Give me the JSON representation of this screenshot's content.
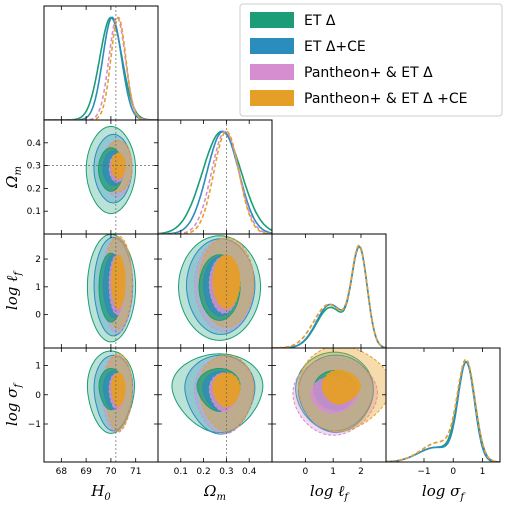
{
  "chart_data": {
    "type": "corner",
    "params": [
      {
        "key": "H0",
        "label_main": "H",
        "label_sub": "0",
        "range": [
          67.3,
          71.9
        ],
        "ticks": [
          68,
          69,
          70,
          71
        ],
        "truth": 70.2
      },
      {
        "key": "Om",
        "label_main": "Ω",
        "label_sub": "m",
        "range": [
          0.0,
          0.5
        ],
        "ticks": [
          0.1,
          0.2,
          0.3,
          0.4
        ],
        "truth": 0.3
      },
      {
        "key": "logl",
        "label_main": "log ℓ",
        "label_sub": "f",
        "range": [
          -1.2,
          2.9
        ],
        "ticks": [
          0,
          1,
          2
        ],
        "truth": null
      },
      {
        "key": "logs",
        "label_main": "log σ",
        "label_sub": "f",
        "range": [
          -2.3,
          1.6
        ],
        "ticks": [
          -1,
          0,
          1
        ],
        "truth": null
      }
    ],
    "tick_labels": {
      "H0": [
        "68",
        "69",
        "70",
        "71"
      ],
      "Om": [
        "0.1",
        "0.2",
        "0.3",
        "0.4"
      ],
      "logl": [
        "0",
        "1",
        "2"
      ],
      "logs": [
        "−1",
        "0",
        "1"
      ]
    },
    "legend": {
      "placement": "top-right",
      "entries": [
        {
          "name": "ET Δ",
          "color": "#1b9e77"
        },
        {
          "name": "ET Δ+CE",
          "color": "#2b8cbe"
        },
        {
          "name": "Pantheon+ & ET Δ",
          "color": "#d68ed0"
        },
        {
          "name": "Pantheon+ & ET Δ +CE",
          "color": "#e69f26"
        }
      ]
    },
    "series": [
      {
        "color": "#1b9e77",
        "dashed": false,
        "fill_opacity": 0.4,
        "marg": {
          "H0": {
            "mu": 70.0,
            "sd": 0.45
          },
          "Om": {
            "mu": 0.28,
            "sd": 0.085
          },
          "logl": {
            "peaks": [
              {
                "mu": 1.95,
                "sd": 0.28,
                "w": 1.0
              },
              {
                "mu": 0.9,
                "sd": 0.5,
                "w": 0.42
              }
            ]
          },
          "logs": {
            "peaks": [
              {
                "mu": 0.45,
                "sd": 0.3,
                "w": 1.0
              },
              {
                "mu": -0.6,
                "sd": 0.6,
                "w": 0.15
              }
            ]
          }
        },
        "contours": {
          "H0|Om": {
            "c": [
              70.0,
              0.285
            ],
            "r1": [
              0.48,
              0.085
            ],
            "r2": [
              0.95,
              0.17
            ],
            "skew": [
              0.05,
              0.05,
              0.15,
              0.1
            ]
          },
          "H0|logl": {
            "c": [
              70.0,
              1.0
            ],
            "r1": [
              0.48,
              1.15
            ],
            "r2": [
              0.95,
              1.8
            ],
            "skew": [
              0.05,
              0.0,
              0.1,
              0.05
            ]
          },
          "H0|logs": {
            "c": [
              70.0,
              0.3
            ],
            "r1": [
              0.48,
              0.6
            ],
            "r2": [
              0.95,
              1.2
            ],
            "skew": [
              0.0,
              0.0,
              0.35,
              0.0
            ]
          },
          "Om|logl": {
            "c": [
              0.27,
              1.0
            ],
            "r1": [
              0.09,
              1.1
            ],
            "r2": [
              0.18,
              1.75
            ],
            "skew": [
              0.0,
              0.0,
              0.1,
              0.05
            ]
          },
          "Om|logs": {
            "c": [
              0.27,
              0.3
            ],
            "r1": [
              0.09,
              0.6
            ],
            "r2": [
              0.19,
              1.1
            ],
            "skew": [
              0.0,
              0.1,
              0.45,
              0.0
            ]
          },
          "logl|logs": {
            "c": [
              1.05,
              0.2
            ],
            "r1": [
              0.75,
              0.6
            ],
            "r2": [
              1.4,
              1.2
            ],
            "skew": [
              0.0,
              0.0,
              0.2,
              0.05
            ]
          }
        }
      },
      {
        "color": "#2b8cbe",
        "dashed": false,
        "fill_opacity": 0.4,
        "marg": {
          "H0": {
            "mu": 70.05,
            "sd": 0.38
          },
          "Om": {
            "mu": 0.285,
            "sd": 0.07
          },
          "logl": {
            "peaks": [
              {
                "mu": 1.95,
                "sd": 0.28,
                "w": 1.0
              },
              {
                "mu": 0.9,
                "sd": 0.5,
                "w": 0.45
              }
            ]
          },
          "logs": {
            "peaks": [
              {
                "mu": 0.45,
                "sd": 0.28,
                "w": 1.0
              },
              {
                "mu": -0.6,
                "sd": 0.6,
                "w": 0.15
              }
            ]
          }
        },
        "contours": {
          "H0|Om": {
            "c": [
              70.1,
              0.29
            ],
            "r1": [
              0.4,
              0.07
            ],
            "r2": [
              0.75,
              0.14
            ],
            "skew": [
              0.0,
              0.05,
              0.1,
              0.05
            ]
          },
          "H0|logl": {
            "c": [
              70.1,
              1.05
            ],
            "r1": [
              0.4,
              1.05
            ],
            "r2": [
              0.78,
              1.65
            ],
            "skew": [
              0.0,
              0.0,
              0.1,
              0.05
            ]
          },
          "H0|logs": {
            "c": [
              70.1,
              0.25
            ],
            "r1": [
              0.4,
              0.55
            ],
            "r2": [
              0.78,
              1.1
            ],
            "skew": [
              0.0,
              0.0,
              0.35,
              0.0
            ]
          },
          "Om|logl": {
            "c": [
              0.275,
              1.05
            ],
            "r1": [
              0.075,
              1.0
            ],
            "r2": [
              0.15,
              1.6
            ],
            "skew": [
              0.0,
              0.0,
              0.1,
              0.05
            ]
          },
          "Om|logs": {
            "c": [
              0.275,
              0.25
            ],
            "r1": [
              0.075,
              0.55
            ],
            "r2": [
              0.15,
              1.1
            ],
            "skew": [
              0.0,
              0.05,
              0.45,
              0.0
            ]
          },
          "logl|logs": {
            "c": [
              1.1,
              0.15
            ],
            "r1": [
              0.7,
              0.55
            ],
            "r2": [
              1.35,
              1.15
            ],
            "skew": [
              0.0,
              0.0,
              0.25,
              0.05
            ]
          }
        }
      },
      {
        "color": "#d68ed0",
        "dashed": true,
        "fill_opacity": 0.45,
        "marg": {
          "H0": {
            "mu": 70.25,
            "sd": 0.33
          },
          "Om": {
            "mu": 0.295,
            "sd": 0.06
          },
          "logl": {
            "peaks": [
              {
                "mu": 1.95,
                "sd": 0.28,
                "w": 1.0
              },
              {
                "mu": 0.85,
                "sd": 0.55,
                "w": 0.45
              }
            ]
          },
          "logs": {
            "peaks": [
              {
                "mu": 0.45,
                "sd": 0.3,
                "w": 1.0
              },
              {
                "mu": -0.5,
                "sd": 0.6,
                "w": 0.2
              }
            ]
          }
        },
        "contours": {
          "H0|Om": {
            "c": [
              70.25,
              0.29
            ],
            "r1": [
              0.32,
              0.06
            ],
            "r2": [
              0.6,
              0.12
            ],
            "skew": [
              0.0,
              0.0,
              0.05,
              0.0
            ]
          },
          "H0|logl": {
            "c": [
              70.25,
              1.1
            ],
            "r1": [
              0.32,
              1.0
            ],
            "r2": [
              0.62,
              1.6
            ],
            "skew": [
              0.0,
              0.0,
              0.1,
              0.05
            ]
          },
          "H0|logs": {
            "c": [
              70.25,
              0.2
            ],
            "r1": [
              0.32,
              0.55
            ],
            "r2": [
              0.62,
              1.15
            ],
            "skew": [
              0.0,
              0.0,
              0.3,
              0.0
            ]
          },
          "Om|logl": {
            "c": [
              0.29,
              1.1
            ],
            "r1": [
              0.065,
              0.95
            ],
            "r2": [
              0.13,
              1.55
            ],
            "skew": [
              0.0,
              0.0,
              0.1,
              0.05
            ]
          },
          "Om|logs": {
            "c": [
              0.29,
              0.2
            ],
            "r1": [
              0.065,
              0.55
            ],
            "r2": [
              0.13,
              1.1
            ],
            "skew": [
              0.0,
              0.0,
              0.4,
              0.0
            ]
          },
          "logl|logs": {
            "c": [
              1.0,
              0.05
            ],
            "r1": [
              0.8,
              0.55
            ],
            "r2": [
              1.45,
              1.15
            ],
            "skew": [
              0.1,
              0.0,
              0.25,
              0.05
            ]
          }
        }
      },
      {
        "color": "#e69f26",
        "dashed": true,
        "fill_opacity": 0.5,
        "marg": {
          "H0": {
            "mu": 70.3,
            "sd": 0.3
          },
          "Om": {
            "mu": 0.3,
            "sd": 0.055
          },
          "logl": {
            "peaks": [
              {
                "mu": 1.95,
                "sd": 0.28,
                "w": 1.0
              },
              {
                "mu": 0.85,
                "sd": 0.55,
                "w": 0.45
              }
            ]
          },
          "logs": {
            "peaks": [
              {
                "mu": 0.45,
                "sd": 0.3,
                "w": 1.0
              },
              {
                "mu": -0.5,
                "sd": 0.6,
                "w": 0.2
              }
            ]
          }
        },
        "contours": {
          "H0|Om": {
            "c": [
              70.3,
              0.3
            ],
            "r1": [
              0.28,
              0.055
            ],
            "r2": [
              0.55,
              0.11
            ],
            "skew": [
              0.0,
              0.0,
              0.05,
              0.0
            ]
          },
          "H0|logl": {
            "c": [
              70.3,
              1.2
            ],
            "r1": [
              0.28,
              0.9
            ],
            "r2": [
              0.55,
              1.55
            ],
            "skew": [
              0.0,
              0.0,
              0.1,
              0.05
            ]
          },
          "H0|logs": {
            "c": [
              70.3,
              0.25
            ],
            "r1": [
              0.28,
              0.5
            ],
            "r2": [
              0.55,
              1.15
            ],
            "skew": [
              0.0,
              0.0,
              0.3,
              0.0
            ]
          },
          "Om|logl": {
            "c": [
              0.3,
              1.2
            ],
            "r1": [
              0.06,
              0.9
            ],
            "r2": [
              0.12,
              1.5
            ],
            "skew": [
              0.0,
              0.0,
              0.1,
              0.05
            ]
          },
          "Om|logs": {
            "c": [
              0.3,
              0.25
            ],
            "r1": [
              0.06,
              0.5
            ],
            "r2": [
              0.12,
              1.1
            ],
            "skew": [
              0.0,
              0.0,
              0.35,
              0.0
            ]
          },
          "logl|logs": {
            "c": [
              1.2,
              0.3
            ],
            "r1": [
              0.6,
              0.5
            ],
            "r2": [
              1.45,
              1.25
            ],
            "skew": [
              0.3,
              0.0,
              0.25,
              0.1
            ]
          }
        }
      }
    ]
  }
}
